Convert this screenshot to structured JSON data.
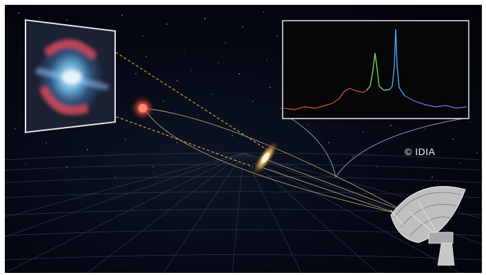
{
  "image": {
    "credit_text": "© IDIA"
  },
  "colors": {
    "background": "#03050c",
    "grid": "#3a4a66",
    "beam": "#d9c98a",
    "dashed": "#f0b24a",
    "panel_border": "#e8e8e8",
    "spectrum_left": "#d7533a",
    "spectrum_mid": "#7fd46a",
    "spectrum_peak": "#4aa8ff",
    "spectrum_right": "#8a6bff"
  },
  "icons": {
    "telescope": "radio-telescope-dish",
    "galaxy": "spiral-galaxy",
    "source": "red-quasar"
  }
}
